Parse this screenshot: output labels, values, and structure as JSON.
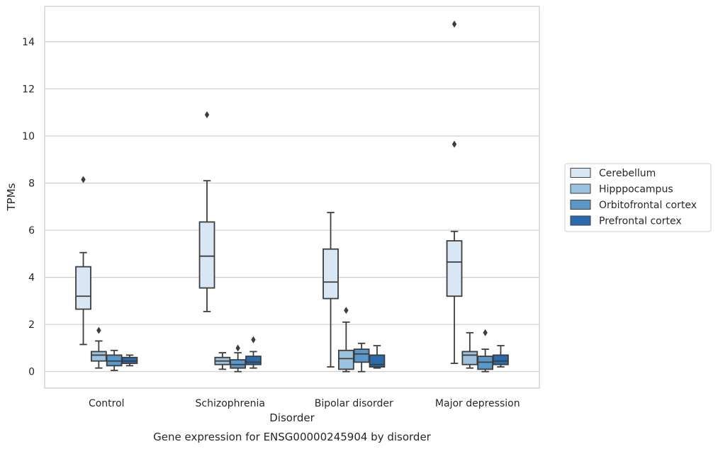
{
  "chart_data": {
    "type": "box",
    "caption": "Gene expression for ENSG00000245904 by disorder",
    "xlabel": "Disorder",
    "ylabel": "TPMs",
    "ylim": [
      -0.7,
      15.5
    ],
    "yticks": [
      0,
      2,
      4,
      6,
      8,
      10,
      12,
      14
    ],
    "grid": "horizontal",
    "legend_position": "right",
    "categories": [
      "Control",
      "Schizophrenia",
      "Bipolar disorder",
      "Major depression"
    ],
    "series": [
      {
        "name": "Cerebellum",
        "color": "#d9e6f3",
        "boxes": [
          {
            "whisker_low": 1.15,
            "q1": 2.65,
            "median": 3.2,
            "q3": 4.45,
            "whisker_high": 5.05,
            "outliers": [
              8.15
            ]
          },
          {
            "whisker_low": 2.55,
            "q1": 3.55,
            "median": 4.9,
            "q3": 6.35,
            "whisker_high": 8.1,
            "outliers": [
              10.9
            ]
          },
          {
            "whisker_low": 0.2,
            "q1": 3.1,
            "median": 3.8,
            "q3": 5.2,
            "whisker_high": 6.75,
            "outliers": []
          },
          {
            "whisker_low": 0.35,
            "q1": 3.2,
            "median": 4.65,
            "q3": 5.55,
            "whisker_high": 5.95,
            "outliers": [
              9.65,
              14.75
            ]
          }
        ]
      },
      {
        "name": "Hipppocampus",
        "color": "#9cc3dd",
        "boxes": [
          {
            "whisker_low": 0.15,
            "q1": 0.45,
            "median": 0.7,
            "q3": 0.85,
            "whisker_high": 1.3,
            "outliers": [
              1.75
            ]
          },
          {
            "whisker_low": 0.1,
            "q1": 0.3,
            "median": 0.45,
            "q3": 0.6,
            "whisker_high": 0.8,
            "outliers": []
          },
          {
            "whisker_low": 0.0,
            "q1": 0.1,
            "median": 0.55,
            "q3": 0.9,
            "whisker_high": 2.1,
            "outliers": [
              2.6
            ]
          },
          {
            "whisker_low": 0.15,
            "q1": 0.3,
            "median": 0.7,
            "q3": 0.85,
            "whisker_high": 1.65,
            "outliers": []
          }
        ]
      },
      {
        "name": "Orbitofrontal cortex",
        "color": "#5a98c9",
        "boxes": [
          {
            "whisker_low": 0.05,
            "q1": 0.25,
            "median": 0.45,
            "q3": 0.7,
            "whisker_high": 0.9,
            "outliers": []
          },
          {
            "whisker_low": 0.0,
            "q1": 0.15,
            "median": 0.3,
            "q3": 0.5,
            "whisker_high": 0.8,
            "outliers": [
              1.0
            ]
          },
          {
            "whisker_low": 0.0,
            "q1": 0.4,
            "median": 0.75,
            "q3": 0.95,
            "whisker_high": 1.2,
            "outliers": []
          },
          {
            "whisker_low": 0.0,
            "q1": 0.1,
            "median": 0.4,
            "q3": 0.65,
            "whisker_high": 0.95,
            "outliers": [
              1.65
            ]
          }
        ]
      },
      {
        "name": "Prefrontal cortex",
        "color": "#2a6bae",
        "boxes": [
          {
            "whisker_low": 0.25,
            "q1": 0.35,
            "median": 0.45,
            "q3": 0.6,
            "whisker_high": 0.7,
            "outliers": []
          },
          {
            "whisker_low": 0.15,
            "q1": 0.3,
            "median": 0.4,
            "q3": 0.65,
            "whisker_high": 0.85,
            "outliers": [
              1.35
            ]
          },
          {
            "whisker_low": 0.15,
            "q1": 0.2,
            "median": 0.3,
            "q3": 0.7,
            "whisker_high": 1.1,
            "outliers": []
          },
          {
            "whisker_low": 0.2,
            "q1": 0.3,
            "median": 0.45,
            "q3": 0.7,
            "whisker_high": 1.1,
            "outliers": []
          }
        ]
      }
    ]
  }
}
